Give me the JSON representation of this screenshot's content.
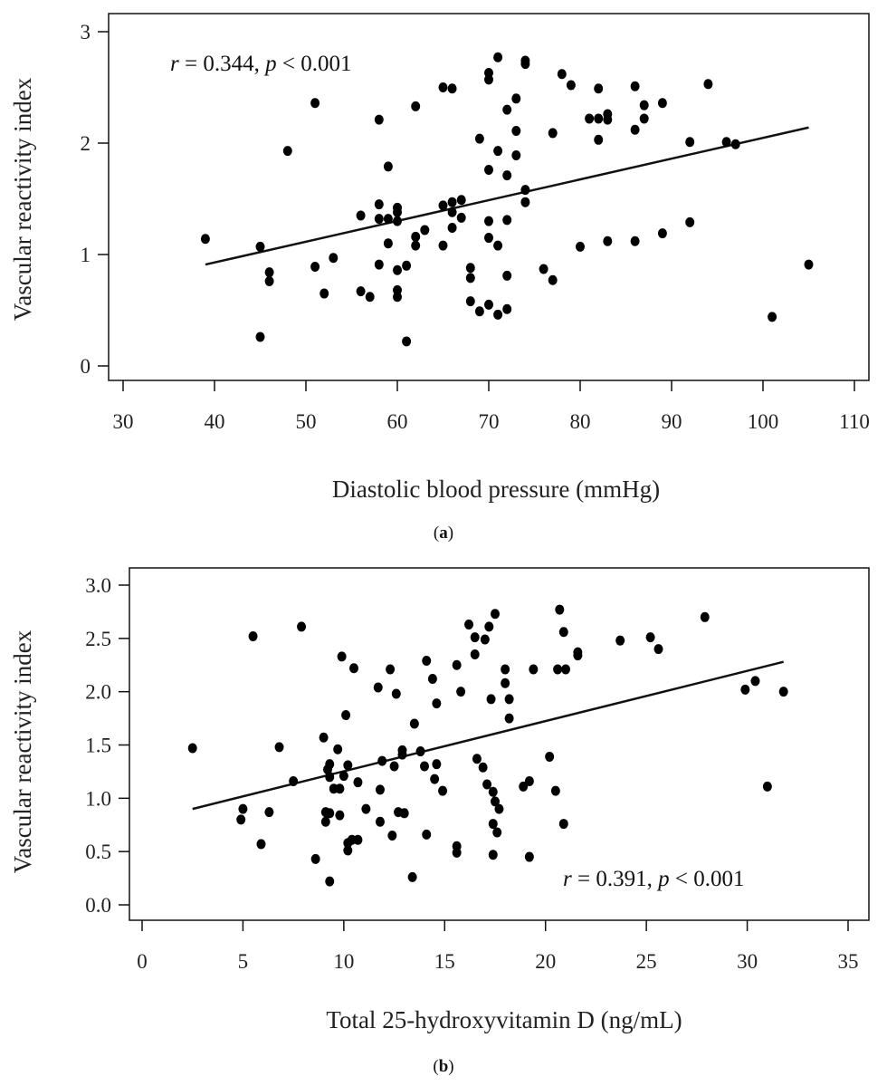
{
  "chart_data": [
    {
      "type": "scatter",
      "caption_prefix": "(",
      "caption_letter": "a",
      "caption_suffix": ")",
      "xlabel": "Diastolic blood pressure (mmHg)",
      "ylabel": "Vascular reactivity index",
      "xlim": [
        30,
        110
      ],
      "ylim": [
        0,
        3
      ],
      "xticks": [
        30,
        40,
        50,
        60,
        70,
        80,
        90,
        100,
        110
      ],
      "xtick_labels": [
        "30",
        "40",
        "50",
        "60",
        "70",
        "80",
        "90",
        "100",
        "110"
      ],
      "yticks": [
        0,
        1,
        2,
        3
      ],
      "ytick_labels": [
        "0",
        "1",
        "2",
        "3"
      ],
      "annotation": {
        "r_symbol": "r",
        "r_text": " = 0.344, ",
        "p_symbol": "p",
        "p_text": " < 0.001",
        "placement": "top-left"
      },
      "grid": false,
      "trendline": {
        "x": [
          39,
          105
        ],
        "y": [
          0.91,
          2.14
        ]
      },
      "points": [
        [
          39,
          1.14
        ],
        [
          45,
          1.07
        ],
        [
          45,
          0.26
        ],
        [
          46,
          0.84
        ],
        [
          46,
          0.76
        ],
        [
          48,
          1.93
        ],
        [
          51,
          2.36
        ],
        [
          51,
          0.89
        ],
        [
          52,
          0.65
        ],
        [
          53,
          0.97
        ],
        [
          56,
          1.35
        ],
        [
          56,
          0.67
        ],
        [
          57,
          0.62
        ],
        [
          58,
          2.21
        ],
        [
          58,
          1.45
        ],
        [
          58,
          1.32
        ],
        [
          58,
          0.91
        ],
        [
          59,
          1.79
        ],
        [
          59,
          1.32
        ],
        [
          59,
          1.1
        ],
        [
          60,
          1.42
        ],
        [
          60,
          1.38
        ],
        [
          60,
          1.3
        ],
        [
          60,
          0.86
        ],
        [
          60,
          0.68
        ],
        [
          60,
          0.62
        ],
        [
          61,
          0.9
        ],
        [
          61,
          0.22
        ],
        [
          62,
          2.33
        ],
        [
          62,
          1.16
        ],
        [
          62,
          1.08
        ],
        [
          63,
          1.22
        ],
        [
          65,
          2.5
        ],
        [
          65,
          1.44
        ],
        [
          65,
          1.08
        ],
        [
          66,
          2.49
        ],
        [
          66,
          1.47
        ],
        [
          66,
          1.38
        ],
        [
          66,
          1.24
        ],
        [
          67,
          1.49
        ],
        [
          67,
          1.33
        ],
        [
          68,
          0.88
        ],
        [
          68,
          0.79
        ],
        [
          68,
          0.58
        ],
        [
          69,
          2.04
        ],
        [
          69,
          0.49
        ],
        [
          70,
          2.63
        ],
        [
          70,
          2.57
        ],
        [
          70,
          1.76
        ],
        [
          70,
          1.3
        ],
        [
          70,
          1.15
        ],
        [
          70,
          0.55
        ],
        [
          71,
          2.77
        ],
        [
          71,
          1.93
        ],
        [
          71,
          1.08
        ],
        [
          71,
          0.46
        ],
        [
          72,
          2.3
        ],
        [
          72,
          1.71
        ],
        [
          72,
          1.31
        ],
        [
          72,
          0.81
        ],
        [
          72,
          0.51
        ],
        [
          73,
          2.4
        ],
        [
          73,
          2.11
        ],
        [
          73,
          1.89
        ],
        [
          74,
          2.74
        ],
        [
          74,
          2.71
        ],
        [
          74,
          1.58
        ],
        [
          74,
          1.47
        ],
        [
          76,
          0.87
        ],
        [
          77,
          2.09
        ],
        [
          77,
          0.77
        ],
        [
          78,
          2.62
        ],
        [
          79,
          2.52
        ],
        [
          80,
          1.07
        ],
        [
          81,
          2.22
        ],
        [
          82,
          2.49
        ],
        [
          82,
          2.22
        ],
        [
          82,
          2.03
        ],
        [
          83,
          2.26
        ],
        [
          83,
          2.21
        ],
        [
          83,
          1.12
        ],
        [
          86,
          2.51
        ],
        [
          86,
          2.12
        ],
        [
          86,
          1.12
        ],
        [
          87,
          2.34
        ],
        [
          87,
          2.22
        ],
        [
          89,
          2.36
        ],
        [
          89,
          1.19
        ],
        [
          92,
          2.01
        ],
        [
          92,
          1.29
        ],
        [
          94,
          2.53
        ],
        [
          96,
          2.01
        ],
        [
          97,
          1.99
        ],
        [
          101,
          0.44
        ],
        [
          105,
          0.91
        ]
      ]
    },
    {
      "type": "scatter",
      "caption_prefix": "(",
      "caption_letter": "b",
      "caption_suffix": ")",
      "xlabel": "Total 25-hydroxyvitamin D (ng/mL)",
      "ylabel": "Vascular reactivity index",
      "xlim": [
        0,
        35
      ],
      "ylim": [
        0,
        3
      ],
      "xticks": [
        0,
        5,
        10,
        15,
        20,
        25,
        30,
        35
      ],
      "xtick_labels": [
        "0",
        "5",
        "10",
        "15",
        "20",
        "25",
        "30",
        "35"
      ],
      "yticks": [
        0,
        0.5,
        1,
        1.5,
        2,
        2.5,
        3
      ],
      "ytick_labels": [
        "0.0",
        "0.5",
        "1.0",
        "1.5",
        "2.0",
        "2.5",
        "3.0"
      ],
      "annotation": {
        "r_symbol": "r",
        "r_text": " = 0.391, ",
        "p_symbol": "p",
        "p_text": " < 0.001",
        "placement": "bottom-right"
      },
      "grid": false,
      "trendline": {
        "x": [
          2.5,
          31.8
        ],
        "y": [
          0.9,
          2.28
        ]
      },
      "points": [
        [
          2.5,
          1.47
        ],
        [
          4.9,
          0.8
        ],
        [
          5.0,
          0.9
        ],
        [
          5.5,
          2.52
        ],
        [
          5.9,
          0.57
        ],
        [
          6.3,
          0.87
        ],
        [
          6.8,
          1.48
        ],
        [
          7.5,
          1.16
        ],
        [
          7.9,
          2.61
        ],
        [
          8.6,
          0.43
        ],
        [
          9.0,
          1.57
        ],
        [
          9.1,
          0.87
        ],
        [
          9.1,
          0.78
        ],
        [
          9.2,
          1.27
        ],
        [
          9.3,
          1.32
        ],
        [
          9.3,
          1.2
        ],
        [
          9.3,
          0.86
        ],
        [
          9.3,
          0.22
        ],
        [
          9.5,
          1.09
        ],
        [
          9.7,
          1.46
        ],
        [
          9.8,
          1.09
        ],
        [
          9.8,
          0.84
        ],
        [
          9.9,
          2.33
        ],
        [
          10.0,
          1.21
        ],
        [
          10.1,
          1.78
        ],
        [
          10.2,
          1.31
        ],
        [
          10.2,
          0.58
        ],
        [
          10.2,
          0.51
        ],
        [
          10.4,
          0.61
        ],
        [
          10.5,
          2.22
        ],
        [
          10.7,
          1.15
        ],
        [
          10.7,
          0.61
        ],
        [
          11.1,
          0.9
        ],
        [
          11.7,
          2.04
        ],
        [
          11.8,
          1.08
        ],
        [
          11.8,
          0.78
        ],
        [
          11.9,
          1.35
        ],
        [
          12.3,
          2.21
        ],
        [
          12.4,
          0.65
        ],
        [
          12.5,
          1.3
        ],
        [
          12.6,
          1.98
        ],
        [
          12.7,
          0.87
        ],
        [
          12.9,
          1.45
        ],
        [
          12.9,
          1.41
        ],
        [
          13.0,
          0.86
        ],
        [
          13.4,
          0.26
        ],
        [
          13.5,
          1.7
        ],
        [
          13.8,
          1.44
        ],
        [
          14.0,
          1.3
        ],
        [
          14.1,
          2.29
        ],
        [
          14.1,
          0.66
        ],
        [
          14.4,
          2.12
        ],
        [
          14.5,
          1.18
        ],
        [
          14.6,
          1.32
        ],
        [
          14.6,
          1.89
        ],
        [
          14.9,
          1.07
        ],
        [
          15.6,
          2.25
        ],
        [
          15.6,
          0.55
        ],
        [
          15.6,
          0.49
        ],
        [
          15.8,
          2.0
        ],
        [
          16.2,
          2.63
        ],
        [
          16.5,
          2.51
        ],
        [
          16.5,
          2.35
        ],
        [
          16.6,
          1.37
        ],
        [
          16.9,
          1.29
        ],
        [
          17.0,
          2.49
        ],
        [
          17.1,
          1.13
        ],
        [
          17.2,
          2.61
        ],
        [
          17.3,
          1.93
        ],
        [
          17.4,
          1.06
        ],
        [
          17.4,
          0.76
        ],
        [
          17.4,
          0.47
        ],
        [
          17.5,
          2.73
        ],
        [
          17.5,
          0.97
        ],
        [
          17.6,
          0.68
        ],
        [
          17.7,
          0.9
        ],
        [
          18.0,
          2.21
        ],
        [
          18.0,
          2.08
        ],
        [
          18.2,
          1.93
        ],
        [
          18.2,
          1.75
        ],
        [
          18.9,
          1.11
        ],
        [
          19.2,
          1.16
        ],
        [
          19.2,
          0.45
        ],
        [
          19.4,
          2.21
        ],
        [
          20.2,
          1.39
        ],
        [
          20.5,
          1.07
        ],
        [
          20.6,
          2.21
        ],
        [
          20.7,
          2.77
        ],
        [
          20.9,
          0.76
        ],
        [
          20.9,
          2.56
        ],
        [
          21.0,
          2.21
        ],
        [
          21.6,
          2.37
        ],
        [
          21.6,
          2.34
        ],
        [
          23.7,
          2.48
        ],
        [
          25.2,
          2.51
        ],
        [
          25.6,
          2.4
        ],
        [
          27.9,
          2.7
        ],
        [
          29.9,
          2.02
        ],
        [
          30.4,
          2.1
        ],
        [
          31.0,
          1.11
        ],
        [
          31.8,
          2.0
        ]
      ]
    }
  ]
}
